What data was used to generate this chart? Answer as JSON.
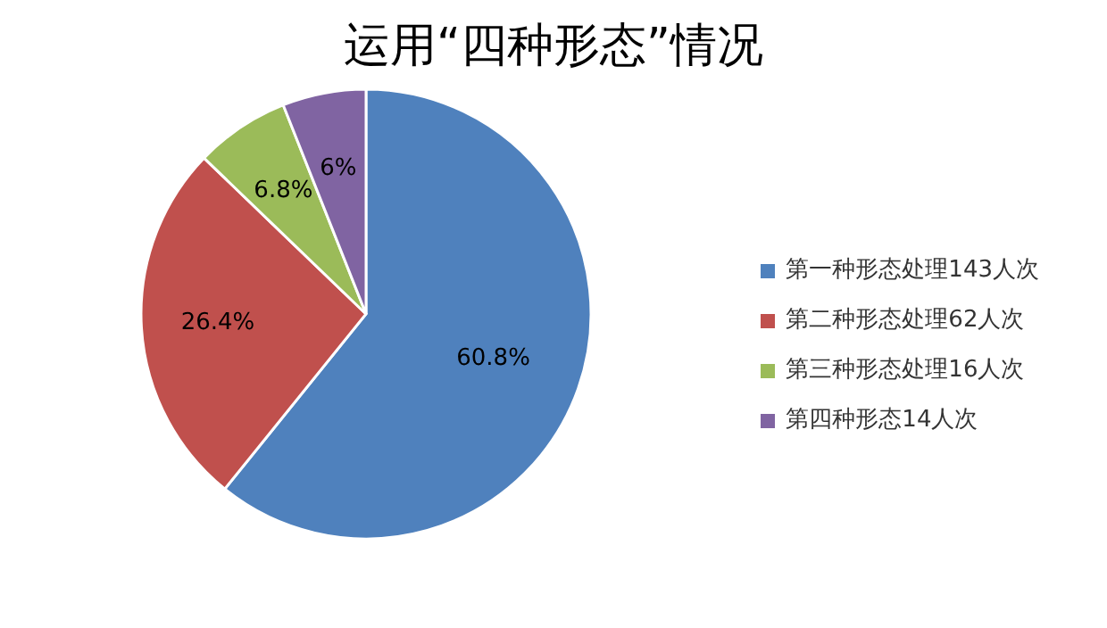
{
  "chart_data": {
    "type": "pie",
    "title": "运用“四种形态”情况",
    "categories": [
      "第一种形态处理143人次",
      "第二种形态处理62人次",
      "第三种形态处理16人次",
      "第四种形态14人次"
    ],
    "values": [
      60.8,
      26.4,
      6.8,
      6
    ],
    "value_labels": [
      "60.8%",
      "26.4%",
      "6.8%",
      "6%"
    ],
    "colors": [
      "#4f81bd",
      "#c0504d",
      "#9bbb59",
      "#8064a2"
    ],
    "legend": "right"
  }
}
